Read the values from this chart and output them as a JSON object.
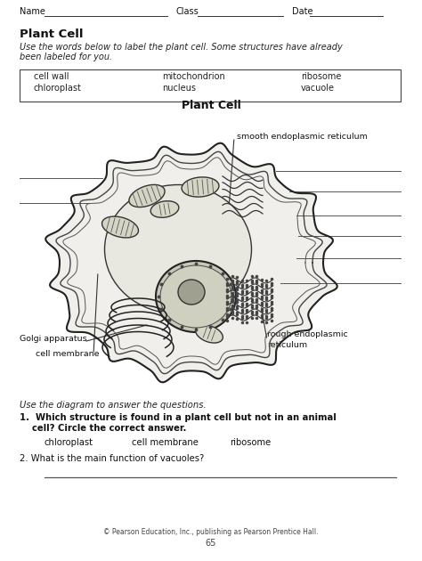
{
  "bg_color": "#ffffff",
  "title_header": "Plant Cell",
  "subtitle_line1": "Use the words below to label the plant cell. Some structures have already",
  "subtitle_line2": "been labeled for you.",
  "word_box_row1": [
    "cell wall",
    "mitochondrion",
    "ribosome"
  ],
  "word_box_row2": [
    "chloroplast",
    "nucleus",
    "vacuole"
  ],
  "diagram_title": "Plant Cell",
  "footer": "© Pearson Education, Inc., publishing as Pearson Prentice Hall.",
  "page_number": "65",
  "q_intro": "Use the diagram to answer the questions.",
  "q1_line1": "1.  Which structure is found in a plant cell but not in an animal",
  "q1_line2": "    cell? Circle the correct answer.",
  "q1_ans": [
    "chloroplast",
    "cell membrane",
    "ribosome"
  ],
  "q2": "2. What is the main function of vacuoles?",
  "label_smooth_er": "smooth endoplasmic reticulum",
  "label_golgi": "Golgi apparatus",
  "label_membrane": "cell membrane",
  "label_rough_er": "rough endoplasmic\nreticulum"
}
